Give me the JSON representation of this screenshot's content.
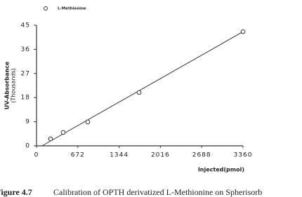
{
  "chart_data": {
    "type": "scatter",
    "legend": "L-Methionine",
    "ylabel": "UV-Absorbance",
    "ylabel_unit": "(Thousands)",
    "xlabel": "Injected(pmol)",
    "x": [
      229,
      434,
      834,
      1669,
      3360
    ],
    "values": [
      2.6,
      5.0,
      8.9,
      19.9,
      42.6
    ],
    "fit_line": {
      "x": [
        91,
        3360
      ],
      "values": [
        0,
        42.6
      ]
    },
    "color": "#333333",
    "xlim": [
      0,
      3360
    ],
    "xticks": [
      0,
      672,
      1344,
      2016,
      2688,
      3360
    ],
    "ylim": [
      0,
      45
    ],
    "yticks": [
      0,
      9,
      18,
      27,
      36,
      45
    ]
  },
  "caption": {
    "label": "Figure 4.7",
    "text": "Calibration of OPTH derivatized L-Methionine on Spherisorb"
  }
}
